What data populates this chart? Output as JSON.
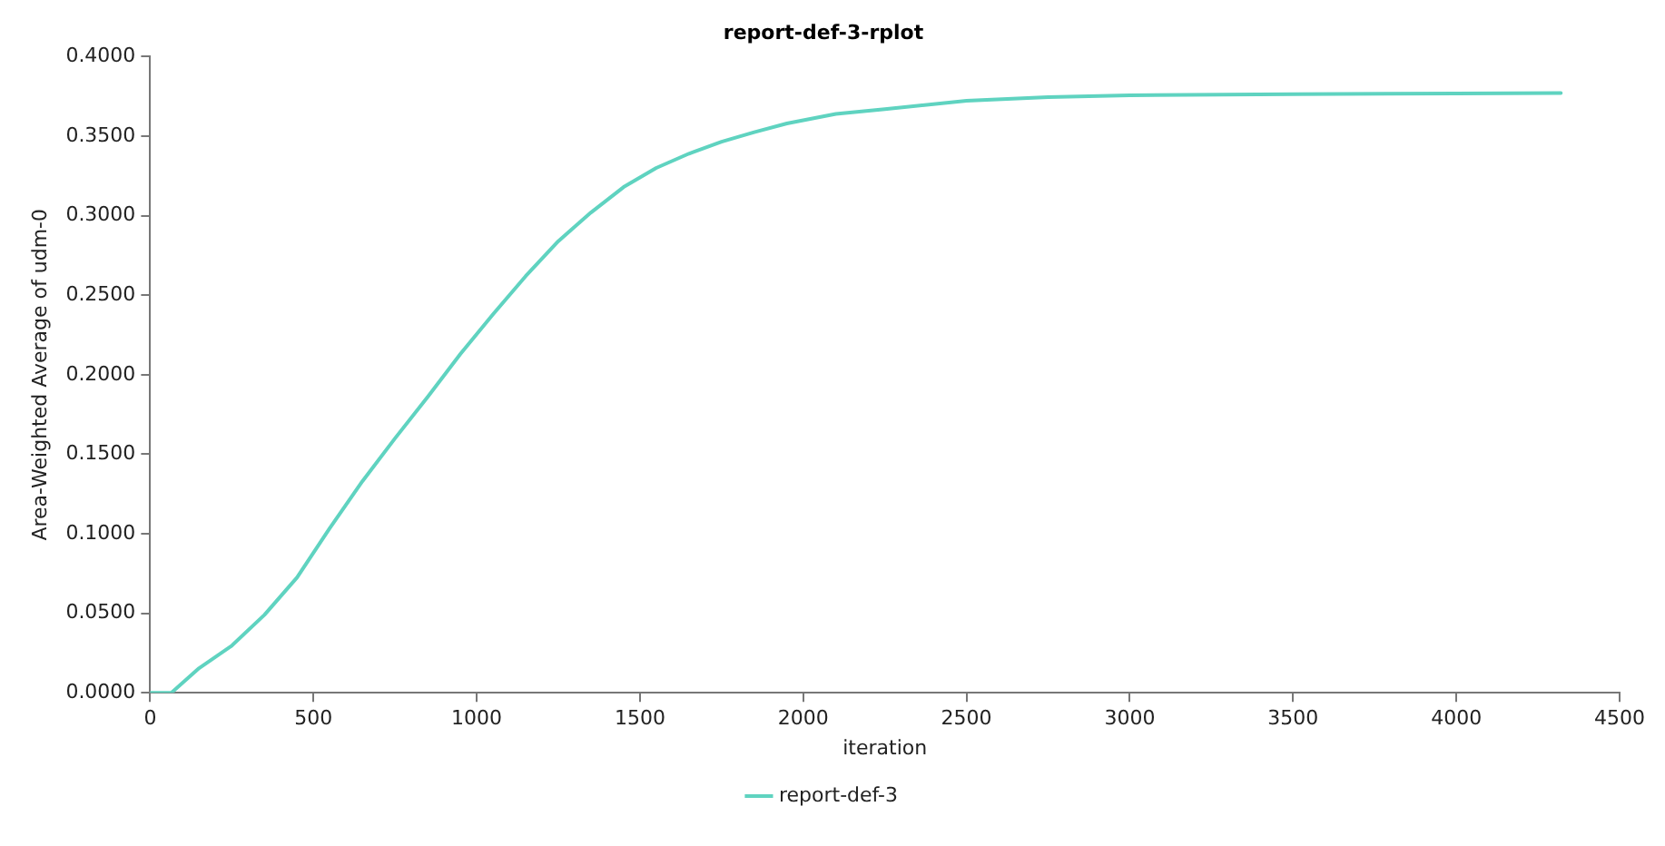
{
  "chart_data": {
    "type": "line",
    "title": "report-def-3-rplot",
    "xlabel": "iteration",
    "ylabel": "Area-Weighted Average of udm-0",
    "x": [
      0,
      65,
      150,
      250,
      350,
      450,
      550,
      650,
      750,
      850,
      950,
      1050,
      1150,
      1250,
      1350,
      1450,
      1550,
      1650,
      1750,
      1850,
      1950,
      2100,
      2250,
      2500,
      2750,
      3000,
      3500,
      4000,
      4320
    ],
    "series": [
      {
        "name": "report-def-3",
        "color": "#5fd3c0",
        "values": [
          0,
          0,
          0.0155,
          0.0296,
          0.049,
          0.0725,
          0.1035,
          0.133,
          0.16,
          0.186,
          0.213,
          0.238,
          0.262,
          0.284,
          0.302,
          0.318,
          0.33,
          0.339,
          0.3465,
          0.3525,
          0.358,
          0.364,
          0.367,
          0.3722,
          0.3746,
          0.3757,
          0.3764,
          0.3768,
          0.3771
        ]
      }
    ],
    "xlim": [
      0,
      4500
    ],
    "xticks": [
      0,
      500,
      1000,
      1500,
      2000,
      2500,
      3000,
      3500,
      4000,
      4500
    ],
    "ylim": [
      0,
      0.4
    ],
    "yticks": [
      {
        "value": 0,
        "label": "0.0000"
      },
      {
        "value": 0.05,
        "label": "0.0500"
      },
      {
        "value": 0.1,
        "label": "0.1000"
      },
      {
        "value": 0.15,
        "label": "0.1500"
      },
      {
        "value": 0.2,
        "label": "0.2000"
      },
      {
        "value": 0.25,
        "label": "0.2500"
      },
      {
        "value": 0.3,
        "label": "0.3000"
      },
      {
        "value": 0.35,
        "label": "0.3500"
      },
      {
        "value": 0.4,
        "label": "0.4000"
      }
    ],
    "grid": false,
    "legend": "bottom",
    "marker": "none",
    "line_style": "solid"
  }
}
